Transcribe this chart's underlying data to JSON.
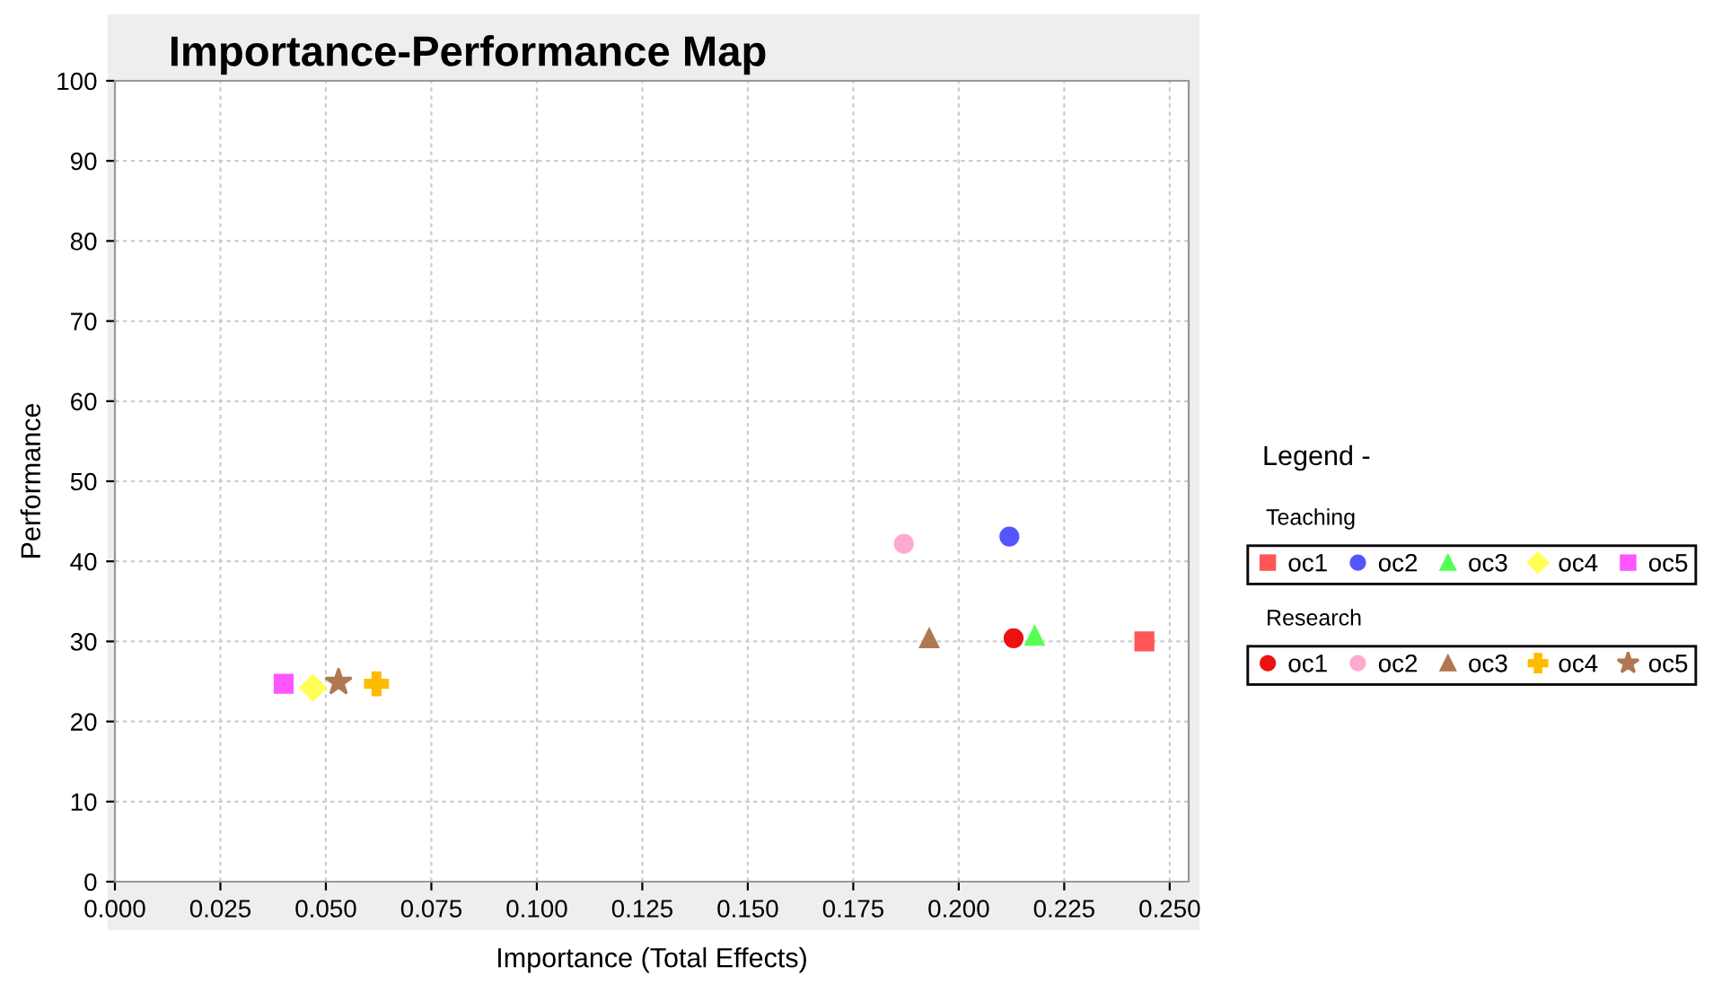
{
  "chart_data": {
    "type": "scatter",
    "title": "Importance-Performance Map",
    "xlabel": "Importance (Total Effects)",
    "ylabel": "Performance",
    "legend_title": "Legend -",
    "annotations": [
      "Teaching",
      "Research"
    ],
    "xlim": [
      0,
      0.2545
    ],
    "ylim": [
      0,
      100
    ],
    "xticks": [
      {
        "value": 0,
        "label": "0.000"
      },
      {
        "value": 0.025,
        "label": "0.025"
      },
      {
        "value": 0.05,
        "label": "0.050"
      },
      {
        "value": 0.075,
        "label": "0.075"
      },
      {
        "value": 0.1,
        "label": "0.100"
      },
      {
        "value": 0.125,
        "label": "0.125"
      },
      {
        "value": 0.15,
        "label": "0.150"
      },
      {
        "value": 0.175,
        "label": "0.175"
      },
      {
        "value": 0.2,
        "label": "0.200"
      },
      {
        "value": 0.225,
        "label": "0.225"
      },
      {
        "value": 0.25,
        "label": "0.250"
      }
    ],
    "yticks": [
      0,
      10,
      20,
      30,
      40,
      50,
      60,
      70,
      80,
      90,
      100
    ],
    "grid": true,
    "legend": "right",
    "series": [
      {
        "name": "oc1",
        "color": "#ff5555",
        "marker": "square",
        "x": [
          0.244
        ],
        "values": [
          30.0
        ]
      },
      {
        "name": "oc2",
        "color": "#5555ff",
        "marker": "circle",
        "x": [
          0.212
        ],
        "values": [
          43.1
        ]
      },
      {
        "name": "oc3",
        "color": "#55ff55",
        "marker": "triangle",
        "x": [
          0.218
        ],
        "values": [
          30.7
        ]
      },
      {
        "name": "oc4",
        "color": "#ffff55",
        "marker": "diamond",
        "x": [
          0.047
        ],
        "values": [
          24.2
        ]
      },
      {
        "name": "oc5",
        "color": "#ff55ff",
        "marker": "square",
        "x": [
          0.04
        ],
        "values": [
          24.7
        ]
      },
      {
        "name": "oc1",
        "color": "#ee1111",
        "marker": "circle",
        "x": [
          0.213
        ],
        "values": [
          30.4
        ]
      },
      {
        "name": "oc2",
        "color": "#ffaacc",
        "marker": "circle",
        "x": [
          0.187
        ],
        "values": [
          42.2
        ]
      },
      {
        "name": "oc3",
        "color": "#b07850",
        "marker": "triangle",
        "x": [
          0.193
        ],
        "values": [
          30.4
        ]
      },
      {
        "name": "oc4",
        "color": "#ffbb00",
        "marker": "cross",
        "x": [
          0.062
        ],
        "values": [
          24.7
        ]
      },
      {
        "name": "oc5",
        "color": "#b07850",
        "marker": "star",
        "x": [
          0.053
        ],
        "values": [
          24.9
        ]
      }
    ]
  }
}
